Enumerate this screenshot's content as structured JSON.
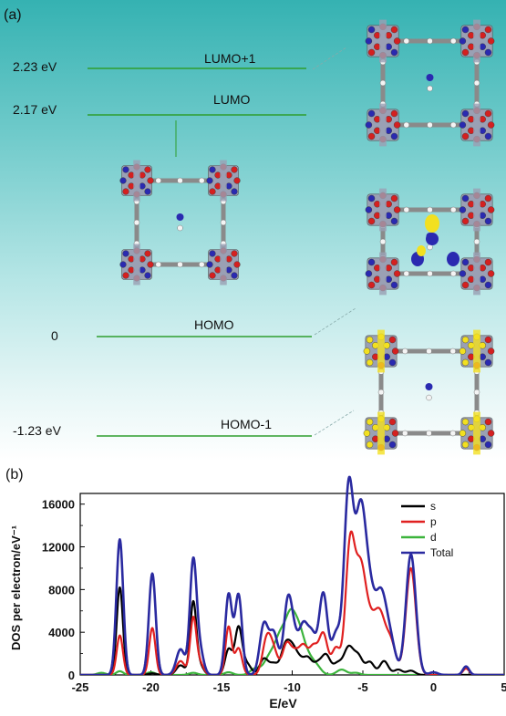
{
  "panel_a": {
    "label": "(a)",
    "levels": [
      {
        "energy_label": "2.23 eV",
        "name": "LUMO+1"
      },
      {
        "energy_label": "2.17 eV",
        "name": "LUMO"
      },
      {
        "energy_label": "0",
        "name": "HOMO"
      },
      {
        "energy_label": "-1.23 eV",
        "name": "HOMO-1"
      }
    ],
    "colors": {
      "level_line": "#2e9e2e",
      "background_top": "#35b2b2",
      "atom_red": "#d42020",
      "atom_blue": "#2a2ab0",
      "atom_yellow": "#f2e020",
      "atom_grey": "#9aa0b4",
      "atom_white": "#f4f4f4"
    }
  },
  "panel_b": {
    "label": "(b)"
  },
  "chart_data": {
    "type": "line",
    "xlabel": "E/eV",
    "ylabel": "DOS per electron/eV⁻¹",
    "xlim": [
      -25,
      5
    ],
    "ylim": [
      0,
      17000
    ],
    "xticks": [
      "-25",
      "-20",
      "-15",
      "-10",
      "-5",
      "0",
      "5"
    ],
    "yticks": [
      "0",
      "4000",
      "8000",
      "12000",
      "16000"
    ],
    "legend_position": "top-right",
    "grid": false,
    "series": [
      {
        "name": "s",
        "color": "#000000",
        "peaks": [
          [
            -22.2,
            8200,
            0.22
          ],
          [
            -19.9,
            150,
            0.3
          ],
          [
            -17.9,
            900,
            0.3
          ],
          [
            -17.0,
            6800,
            0.22
          ],
          [
            -16.5,
            800,
            0.25
          ],
          [
            -14.5,
            2400,
            0.25
          ],
          [
            -13.8,
            4400,
            0.25
          ],
          [
            -13.2,
            1000,
            0.3
          ],
          [
            -12.0,
            1500,
            0.3
          ],
          [
            -11.3,
            1000,
            0.3
          ],
          [
            -10.5,
            2500,
            0.3
          ],
          [
            -10.0,
            2100,
            0.3
          ],
          [
            -9.5,
            1200,
            0.3
          ],
          [
            -8.9,
            1500,
            0.3
          ],
          [
            -8.2,
            1000,
            0.3
          ],
          [
            -7.6,
            1800,
            0.3
          ],
          [
            -6.8,
            1000,
            0.3
          ],
          [
            -6.0,
            2600,
            0.35
          ],
          [
            -5.3,
            1600,
            0.3
          ],
          [
            -4.5,
            1200,
            0.3
          ],
          [
            -3.5,
            1300,
            0.3
          ],
          [
            -2.5,
            500,
            0.3
          ],
          [
            -1.6,
            400,
            0.3
          ]
        ]
      },
      {
        "name": "p",
        "color": "#e02020",
        "peaks": [
          [
            -22.2,
            3700,
            0.22
          ],
          [
            -19.9,
            4400,
            0.22
          ],
          [
            -17.9,
            1300,
            0.3
          ],
          [
            -17.0,
            5300,
            0.22
          ],
          [
            -16.5,
            1000,
            0.25
          ],
          [
            -14.5,
            4500,
            0.22
          ],
          [
            -13.8,
            2500,
            0.25
          ],
          [
            -11.8,
            3300,
            0.3
          ],
          [
            -11.3,
            2000,
            0.3
          ],
          [
            -10.4,
            2800,
            0.3
          ],
          [
            -9.8,
            1800,
            0.3
          ],
          [
            -9.2,
            2500,
            0.3
          ],
          [
            -8.5,
            2500,
            0.3
          ],
          [
            -7.8,
            3800,
            0.3
          ],
          [
            -6.9,
            2500,
            0.3
          ],
          [
            -5.9,
            12000,
            0.32
          ],
          [
            -5.2,
            8500,
            0.35
          ],
          [
            -4.6,
            4400,
            0.4
          ],
          [
            -3.8,
            5400,
            0.4
          ],
          [
            -3.0,
            2800,
            0.35
          ],
          [
            -1.6,
            10000,
            0.35
          ],
          [
            2.3,
            600,
            0.22
          ]
        ]
      },
      {
        "name": "d",
        "color": "#3cb43c",
        "peaks": [
          [
            -23.5,
            200,
            0.3
          ],
          [
            -22.2,
            350,
            0.25
          ],
          [
            -20.0,
            250,
            0.3
          ],
          [
            -17.0,
            200,
            0.3
          ],
          [
            -14.5,
            250,
            0.3
          ],
          [
            -12.6,
            600,
            0.35
          ],
          [
            -11.6,
            1600,
            0.4
          ],
          [
            -10.8,
            3500,
            0.4
          ],
          [
            -10.1,
            4600,
            0.35
          ],
          [
            -9.5,
            3500,
            0.35
          ],
          [
            -8.9,
            1400,
            0.35
          ],
          [
            -8.3,
            800,
            0.35
          ],
          [
            -6.5,
            500,
            0.35
          ],
          [
            -5.5,
            200,
            0.3
          ]
        ]
      },
      {
        "name": "Total",
        "color": "#2a2aa0",
        "peaks": [
          [
            -22.2,
            12700,
            0.24
          ],
          [
            -19.9,
            9500,
            0.24
          ],
          [
            -17.9,
            2400,
            0.3
          ],
          [
            -17.0,
            10700,
            0.24
          ],
          [
            -16.5,
            2000,
            0.25
          ],
          [
            -14.5,
            7500,
            0.24
          ],
          [
            -13.8,
            7500,
            0.25
          ],
          [
            -12.0,
            4700,
            0.3
          ],
          [
            -11.3,
            3800,
            0.3
          ],
          [
            -10.3,
            6800,
            0.3
          ],
          [
            -9.8,
            2500,
            0.3
          ],
          [
            -9.2,
            4200,
            0.3
          ],
          [
            -8.6,
            3500,
            0.3
          ],
          [
            -7.8,
            7600,
            0.3
          ],
          [
            -6.9,
            3700,
            0.3
          ],
          [
            -6.0,
            17400,
            0.33
          ],
          [
            -5.2,
            13000,
            0.35
          ],
          [
            -4.6,
            7600,
            0.4
          ],
          [
            -3.7,
            7200,
            0.4
          ],
          [
            -3.0,
            2500,
            0.35
          ],
          [
            -1.6,
            11300,
            0.35
          ],
          [
            0.0,
            250,
            0.3
          ],
          [
            2.3,
            800,
            0.22
          ]
        ]
      }
    ]
  }
}
